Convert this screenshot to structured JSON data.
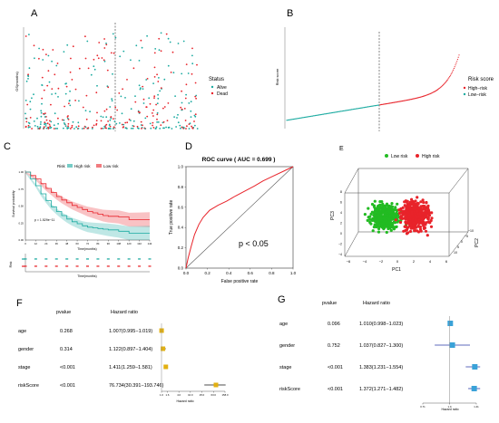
{
  "panels": {
    "A": {
      "label": "A",
      "ylabel": "OS(months)",
      "legend_title": "Status",
      "legend_items": [
        {
          "name": "Alive",
          "color": "#1aaaa0"
        },
        {
          "name": "Dead",
          "color": "#e8232a"
        }
      ]
    },
    "B": {
      "label": "B",
      "ylabel": "Risk score",
      "legend_title": "Risk score",
      "legend_items": [
        {
          "name": "High−risk",
          "color": "#e8232a"
        },
        {
          "name": "Low−risk",
          "color": "#1aaaa0"
        }
      ]
    },
    "C": {
      "label": "C",
      "legend_title": "Risk",
      "legend_items": [
        {
          "name": "High risk",
          "color": "#1aaaa0"
        },
        {
          "name": "Low risk",
          "color": "#e8232a"
        }
      ],
      "ylabel": "Survival probability",
      "xlabel": "Time(months)",
      "pvalue_text": "p = 1.529e−11",
      "risk_table_label": "Risk",
      "risk_table_xlabel": "Time(months)"
    },
    "D": {
      "label": "D",
      "title": "ROC curve ( AUC = 0.699 )",
      "xlabel": "False positive rate",
      "ylabel": "True positive rate",
      "annotation": "p < 0.05",
      "x_ticks": [
        "0.0",
        "0.2",
        "0.4",
        "0.6",
        "0.8",
        "1.0"
      ],
      "y_ticks": [
        "0.0",
        "0.2",
        "0.4",
        "0.6",
        "0.8",
        "1.0"
      ]
    },
    "E": {
      "label": "E",
      "legend_items": [
        {
          "name": "Low risk",
          "color": "#22bb22"
        },
        {
          "name": "High risk",
          "color": "#e8232a"
        }
      ],
      "xlabel": "PC1",
      "ylabel": "PC3",
      "zlabel": "PC2",
      "x_ticks": [
        "−6",
        "−4",
        "−2",
        "0",
        "2",
        "4",
        "6"
      ],
      "y_ticks": [
        "−4",
        "−2",
        "0",
        "2",
        "4",
        "6",
        "8"
      ],
      "z_ticks": [
        "10",
        "5",
        "0",
        "−5",
        "−10"
      ]
    },
    "F": {
      "label": "F",
      "header_pvalue": "pvalue",
      "header_hr": "Hazard ratio",
      "xlabel": "Hazard ratio",
      "x_ticks": [
        "1.0",
        "1.6",
        "4.0",
        "10.0",
        "25.0",
        "63.0",
        "158.0"
      ],
      "color": "#e2b012"
    },
    "G": {
      "label": "G",
      "header_pvalue": "pvalue",
      "header_hr": "Hazard ratio",
      "xlabel": "Hazard ratio",
      "x_ticks": [
        "0.71",
        "1.0",
        "1.41"
      ],
      "color": "#3aa2d8"
    }
  },
  "chart_data": [
    {
      "panel": "A",
      "type": "scatter",
      "ylabel": "OS(months)",
      "series": [
        {
          "name": "Alive"
        },
        {
          "name": "Dead"
        }
      ],
      "cutoff_line": "dashed vertical line at median risk score",
      "note": "per-patient survival time ordered by risk score; individual values not readable"
    },
    {
      "panel": "B",
      "type": "scatter",
      "ylabel": "Risk score",
      "series": [
        {
          "name": "High−risk"
        },
        {
          "name": "Low−risk"
        }
      ],
      "cutoff_line": "dashed vertical line at median risk score",
      "note": "risk score curve rising monotonically; sharp rise at the high end"
    },
    {
      "panel": "C",
      "type": "line",
      "xlabel": "Time(months)",
      "ylabel": "Survival probability",
      "ylim": [
        0,
        1
      ],
      "x": [
        0,
        6,
        12,
        18,
        24,
        30,
        36,
        42,
        48,
        54,
        60,
        66,
        72,
        78,
        84,
        90,
        96,
        108,
        120,
        132,
        144
      ],
      "series": [
        {
          "name": "Low risk",
          "values": [
            1.0,
            0.95,
            0.9,
            0.83,
            0.76,
            0.7,
            0.64,
            0.59,
            0.55,
            0.51,
            0.48,
            0.45,
            0.42,
            0.4,
            0.38,
            0.36,
            0.35,
            0.34,
            0.3,
            0.3,
            0.3
          ]
        },
        {
          "name": "High risk",
          "values": [
            1.0,
            0.9,
            0.8,
            0.68,
            0.58,
            0.49,
            0.42,
            0.36,
            0.31,
            0.27,
            0.24,
            0.21,
            0.19,
            0.18,
            0.17,
            0.16,
            0.15,
            0.13,
            0.1,
            0.1,
            0.1
          ]
        }
      ],
      "pvalue": "p = 1.529e−11"
    },
    {
      "panel": "D",
      "type": "line",
      "title": "ROC curve ( AUC = 0.699 )",
      "xlabel": "False positive rate",
      "ylabel": "True positive rate",
      "xlim": [
        0,
        1
      ],
      "ylim": [
        0,
        1
      ],
      "x": [
        0.0,
        0.02,
        0.05,
        0.08,
        0.12,
        0.16,
        0.22,
        0.3,
        0.38,
        0.46,
        0.55,
        0.64,
        0.72,
        0.82,
        0.92,
        1.0
      ],
      "series": [
        {
          "name": "ROC",
          "values": [
            0.0,
            0.1,
            0.22,
            0.33,
            0.43,
            0.5,
            0.57,
            0.62,
            0.66,
            0.71,
            0.76,
            0.81,
            0.86,
            0.91,
            0.96,
            1.0
          ]
        }
      ],
      "annotation": "p < 0.05"
    },
    {
      "panel": "E",
      "type": "scatter",
      "xlabel": "PC1",
      "ylabel": "PC3",
      "zlabel": "PC2",
      "series": [
        {
          "name": "Low risk"
        },
        {
          "name": "High risk"
        }
      ],
      "note": "3D PCA scatter; green cluster left, red cluster right"
    },
    {
      "panel": "F",
      "type": "forest",
      "xlabel": "Hazard ratio",
      "x_scale": "log",
      "xlim": [
        1.0,
        158.0
      ],
      "rows": [
        {
          "variable": "age",
          "pvalue": "0.268",
          "hr_text": "1.007(0.995−1.019)",
          "hr": 1.007,
          "low": 0.995,
          "high": 1.019
        },
        {
          "variable": "gender",
          "pvalue": "0.314",
          "hr_text": "1.122(0.897−1.404)",
          "hr": 1.122,
          "low": 0.897,
          "high": 1.404
        },
        {
          "variable": "stage",
          "pvalue": "<0.001",
          "hr_text": "1.411(1.259−1.581)",
          "hr": 1.411,
          "low": 1.259,
          "high": 1.581
        },
        {
          "variable": "riskScore",
          "pvalue": "<0.001",
          "hr_text": "76.734(30.391−193.746)",
          "hr": 76.734,
          "low": 30.391,
          "high": 193.746
        }
      ]
    },
    {
      "panel": "G",
      "type": "forest",
      "xlabel": "Hazard ratio",
      "x_scale": "log",
      "xlim": [
        0.71,
        1.41
      ],
      "rows": [
        {
          "variable": "age",
          "pvalue": "0.096",
          "hr_text": "1.010(0.998−1.023)",
          "hr": 1.01,
          "low": 0.998,
          "high": 1.023
        },
        {
          "variable": "gender",
          "pvalue": "0.752",
          "hr_text": "1.037(0.827−1.300)",
          "hr": 1.037,
          "low": 0.827,
          "high": 1.3
        },
        {
          "variable": "stage",
          "pvalue": "<0.001",
          "hr_text": "1.383(1.231−1.554)",
          "hr": 1.383,
          "low": 1.231,
          "high": 1.554
        },
        {
          "variable": "riskScore",
          "pvalue": "<0.001",
          "hr_text": "1.372(1.271−1.482)",
          "hr": 1.372,
          "low": 1.271,
          "high": 1.482
        }
      ]
    }
  ]
}
